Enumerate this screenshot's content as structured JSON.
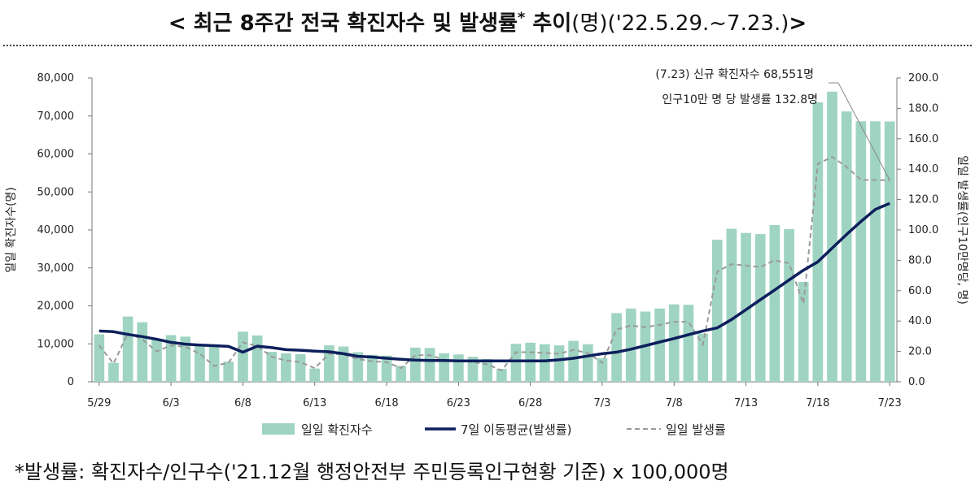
{
  "title": {
    "main": "< 최근 8주간 전국 확진자수 및 발생률",
    "star": "*",
    "mid": " 추이",
    "unit": "(명)",
    "period": "('22.5.29.~7.23.)",
    "close": ">"
  },
  "footnote": "*발생률: 확진자수/인구수('21.12월 행정안전부 주민등록인구현황 기준) x 100,000명",
  "colors": {
    "bars": "#9fd4c2",
    "moving_avg": "#0d1f5c",
    "daily_rate": "#9a9a9a"
  },
  "chart_data": {
    "type": "bar",
    "x": [
      "5/29",
      "5/30",
      "5/31",
      "6/1",
      "6/2",
      "6/3",
      "6/4",
      "6/5",
      "6/6",
      "6/7",
      "6/8",
      "6/9",
      "6/10",
      "6/11",
      "6/12",
      "6/13",
      "6/14",
      "6/15",
      "6/16",
      "6/17",
      "6/18",
      "6/19",
      "6/20",
      "6/21",
      "6/22",
      "6/23",
      "6/24",
      "6/25",
      "6/26",
      "6/27",
      "6/28",
      "6/29",
      "6/30",
      "7/1",
      "7/2",
      "7/3",
      "7/4",
      "7/5",
      "7/6",
      "7/7",
      "7/8",
      "7/9",
      "7/10",
      "7/11",
      "7/12",
      "7/13",
      "7/14",
      "7/15",
      "7/16",
      "7/17",
      "7/18",
      "7/19",
      "7/20",
      "7/21",
      "7/22",
      "7/23"
    ],
    "x_tick_labels": [
      "5/29",
      "6/3",
      "6/8",
      "6/13",
      "6/18",
      "6/23",
      "6/28",
      "7/3",
      "7/8",
      "7/13",
      "7/18",
      "7/23"
    ],
    "y_left": {
      "label": "일일 확진자수(명)",
      "lim": [
        0,
        80000
      ],
      "ticks": [
        "0",
        "10,000",
        "20,000",
        "30,000",
        "40,000",
        "50,000",
        "60,000",
        "70,000",
        "80,000"
      ]
    },
    "y_right": {
      "label": "일일 발생률(인구10만명당, 명)",
      "lim": [
        0,
        200
      ],
      "ticks": [
        "0.0",
        "20.0",
        "40.0",
        "60.0",
        "80.0",
        "100.0",
        "120.0",
        "140.0",
        "160.0",
        "180.0",
        "200.0"
      ]
    },
    "series": [
      {
        "name": "일일 확진자수",
        "type": "bar",
        "axis": "left",
        "values": [
          12500,
          5000,
          17200,
          15700,
          11000,
          12300,
          11900,
          9800,
          9500,
          5300,
          13200,
          12200,
          7900,
          7500,
          7300,
          3500,
          9600,
          9300,
          7800,
          7100,
          6900,
          4200,
          9000,
          8900,
          7500,
          7200,
          6600,
          6000,
          3400,
          10000,
          10300,
          9900,
          9600,
          10800,
          9900,
          6200,
          18100,
          19300,
          18500,
          19300,
          20400,
          20300,
          12700,
          37400,
          40300,
          39200,
          38900,
          41300,
          40200,
          26300,
          73600,
          76400,
          71200,
          68600,
          68600,
          68551
        ]
      },
      {
        "name": "7일 이동평균(발생률)",
        "type": "line",
        "axis": "right",
        "values": [
          33.5,
          33,
          31.2,
          29.8,
          28,
          26,
          24.8,
          24.2,
          23.8,
          23.3,
          19.5,
          23.5,
          22.5,
          21.2,
          20.8,
          20.2,
          19.8,
          18.5,
          16.8,
          16.3,
          15.5,
          14.8,
          14.3,
          14.0,
          14.0,
          13.8,
          13.8,
          13.8,
          13.8,
          13.8,
          13.8,
          13.8,
          14.5,
          15.5,
          17.0,
          18.5,
          19.5,
          21.5,
          23.8,
          26.2,
          28.5,
          31.0,
          33.5,
          35.5,
          41.0,
          47.5,
          54.0,
          60.5,
          67.0,
          73.5,
          79.0,
          88.0,
          97.0,
          105.5,
          113.5,
          117.5
        ]
      },
      {
        "name": "일일 발생률",
        "type": "line",
        "style": "dashed",
        "axis": "right",
        "values": [
          24,
          12,
          32,
          28,
          20,
          24,
          23,
          18.5,
          10.5,
          12.5,
          26,
          23.5,
          16.5,
          14,
          13,
          9,
          18.5,
          18,
          15,
          13.5,
          13,
          9,
          17.5,
          17.5,
          14.5,
          14,
          13,
          11.5,
          7.5,
          19.5,
          19.5,
          19,
          18.5,
          21,
          19,
          12.5,
          34.5,
          37,
          36,
          37.5,
          39.5,
          39.5,
          24.5,
          72.5,
          77.5,
          76.5,
          75.5,
          80,
          78,
          51.5,
          143.5,
          148,
          141.5,
          133,
          132.8,
          132.8
        ]
      }
    ],
    "annotations": [
      "(7.23) 신규 확진자수 68,551명",
      "인구10만 명 당 발생률 132.8명"
    ],
    "legend_position": "bottom"
  }
}
